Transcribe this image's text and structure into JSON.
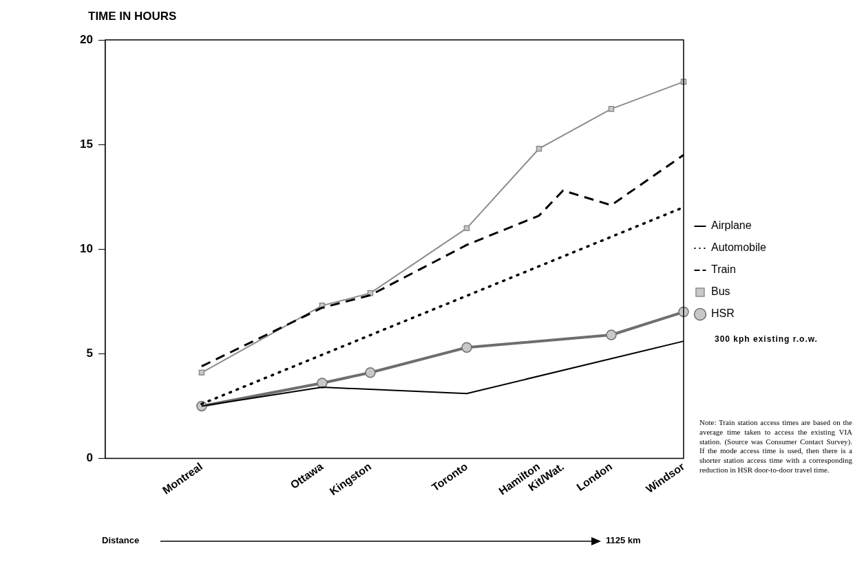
{
  "chart_data": {
    "type": "line",
    "ylabel": "TIME IN HOURS",
    "ylim": [
      0,
      20
    ],
    "yticks": [
      0,
      5,
      10,
      15,
      20
    ],
    "categories": [
      null,
      null,
      null,
      null,
      "Montreal",
      null,
      null,
      null,
      null,
      "Ottawa",
      null,
      "Kingston",
      null,
      null,
      null,
      "Toronto",
      null,
      null,
      "Hamilton",
      "Kit/Wat.",
      null,
      "London",
      null,
      null,
      "Windsor"
    ],
    "grid": false,
    "legend": "right",
    "series": [
      {
        "name": "Airplane",
        "color": "#000000",
        "line_style": "solid",
        "marker": "none",
        "values": [
          null,
          null,
          null,
          null,
          2.5,
          null,
          null,
          null,
          null,
          3.4,
          null,
          null,
          null,
          null,
          null,
          3.1,
          null,
          null,
          null,
          null,
          null,
          null,
          null,
          null,
          5.6
        ]
      },
      {
        "name": "Automobile",
        "color": "#000000",
        "line_style": "dotted",
        "marker": "none",
        "values": [
          null,
          null,
          null,
          null,
          2.6,
          null,
          null,
          null,
          null,
          null,
          null,
          null,
          null,
          null,
          null,
          null,
          null,
          null,
          null,
          null,
          null,
          null,
          null,
          null,
          12.0
        ]
      },
      {
        "name": "Train",
        "color": "#000000",
        "line_style": "dashed",
        "marker": "none",
        "values": [
          null,
          null,
          null,
          null,
          4.4,
          null,
          null,
          null,
          null,
          7.2,
          null,
          7.8,
          null,
          null,
          null,
          10.2,
          null,
          null,
          11.6,
          12.8,
          null,
          12.1,
          null,
          null,
          14.5
        ]
      },
      {
        "name": "Bus",
        "color": "#8c8c8c",
        "line_style": "solid",
        "marker": "square",
        "values": [
          null,
          null,
          null,
          null,
          4.1,
          null,
          null,
          null,
          null,
          7.3,
          null,
          7.9,
          null,
          null,
          null,
          11.0,
          null,
          null,
          14.8,
          null,
          null,
          16.7,
          null,
          null,
          18.0
        ]
      },
      {
        "name": "HSR",
        "color": "#6e6e6e",
        "line_style": "solid",
        "marker": "circle",
        "values": [
          null,
          null,
          null,
          null,
          2.5,
          null,
          null,
          null,
          null,
          3.6,
          null,
          4.1,
          null,
          null,
          null,
          5.3,
          null,
          null,
          null,
          null,
          null,
          5.9,
          null,
          null,
          7.0
        ]
      }
    ],
    "annotations": [
      "300 kph existing r.o.w.",
      "Note: Train station access times are based on the average time taken to access the existing VIA station. (Source was Consumer Contact Survey). If the mode access time is used, then there is a shorter station access time with a corresponding reduction in HSR door-to-door travel time.",
      "Distance",
      "1125 km"
    ]
  }
}
